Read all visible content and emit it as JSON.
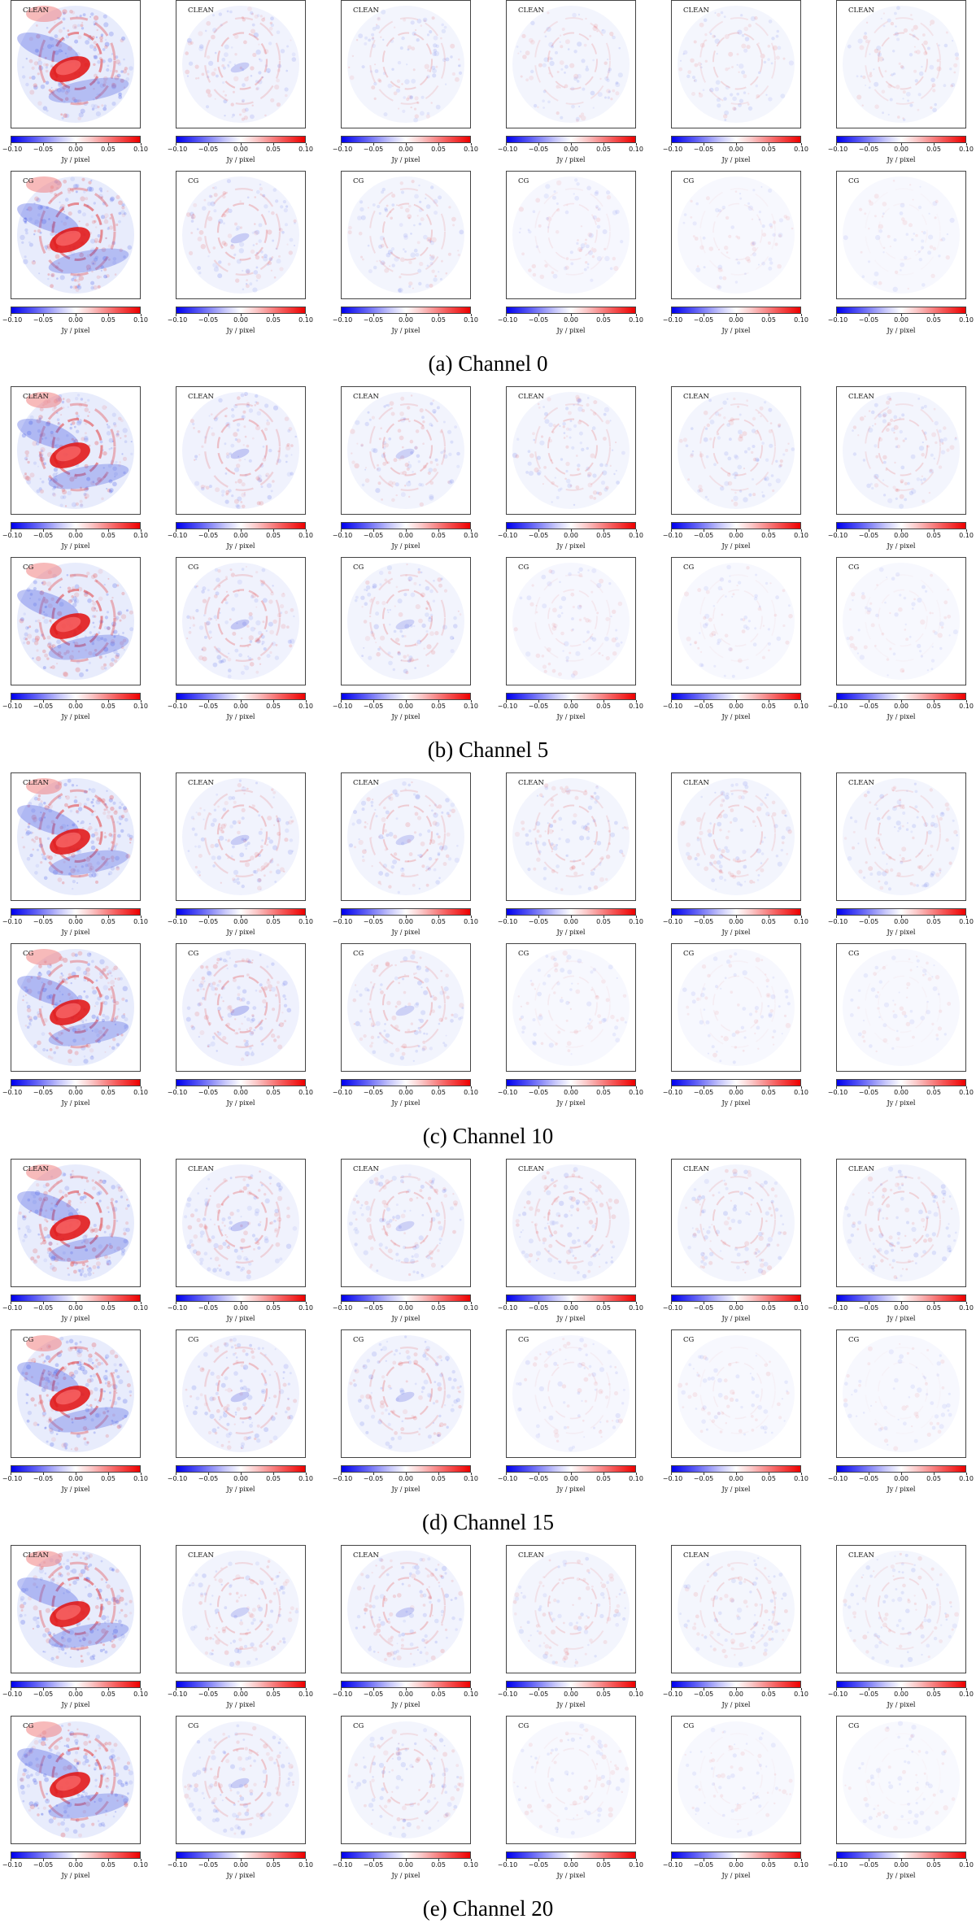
{
  "figure": {
    "colorbar": {
      "ticks": [
        "−0.10",
        "−0.05",
        "0.00",
        "0.05",
        "0.10"
      ],
      "tick_values": [
        -0.1,
        -0.05,
        0.0,
        0.05,
        0.1
      ],
      "unit": "Jy / pixel",
      "colormap": [
        "#0000ee",
        "#ffffff",
        "#ee0000"
      ]
    },
    "row_labels": [
      "CLEAN",
      "CG"
    ],
    "groups": [
      {
        "caption": "(a) Channel 0"
      },
      {
        "caption": "(b) Channel 5"
      },
      {
        "caption": "(c) Channel 10"
      },
      {
        "caption": "(d) Channel 15"
      },
      {
        "caption": "(e) Channel 20"
      }
    ]
  },
  "chart_data": {
    "type": "heatmap",
    "panels_per_row": 6,
    "rows_per_group": 2,
    "colorbar_range": [
      -0.1,
      0.1
    ],
    "colorbar_unit": "Jy / pixel",
    "groups": [
      {
        "caption": "(a) Channel 0",
        "rows": [
          {
            "label": "CLEAN",
            "panel_intensity": [
              1.0,
              0.45,
              0.35,
              0.3,
              0.28,
              0.28
            ]
          },
          {
            "label": "CG",
            "panel_intensity": [
              1.0,
              0.45,
              0.35,
              0.15,
              0.1,
              0.06
            ]
          }
        ]
      },
      {
        "caption": "(b) Channel 5",
        "rows": [
          {
            "label": "CLEAN",
            "panel_intensity": [
              1.0,
              0.5,
              0.4,
              0.35,
              0.3,
              0.3
            ]
          },
          {
            "label": "CG",
            "panel_intensity": [
              1.0,
              0.5,
              0.4,
              0.15,
              0.1,
              0.08
            ]
          }
        ]
      },
      {
        "caption": "(c) Channel 10",
        "rows": [
          {
            "label": "CLEAN",
            "panel_intensity": [
              1.0,
              0.45,
              0.4,
              0.35,
              0.32,
              0.3
            ]
          },
          {
            "label": "CG",
            "panel_intensity": [
              1.0,
              0.55,
              0.4,
              0.12,
              0.1,
              0.06
            ]
          }
        ]
      },
      {
        "caption": "(d) Channel 15",
        "rows": [
          {
            "label": "CLEAN",
            "panel_intensity": [
              1.0,
              0.5,
              0.4,
              0.38,
              0.35,
              0.35
            ]
          },
          {
            "label": "CG",
            "panel_intensity": [
              1.0,
              0.5,
              0.45,
              0.15,
              0.1,
              0.06
            ]
          }
        ]
      },
      {
        "caption": "(e) Channel 20",
        "rows": [
          {
            "label": "CLEAN",
            "panel_intensity": [
              1.0,
              0.4,
              0.45,
              0.3,
              0.28,
              0.25
            ]
          },
          {
            "label": "CG",
            "panel_intensity": [
              1.0,
              0.45,
              0.35,
              0.12,
              0.08,
              0.05
            ]
          }
        ]
      }
    ]
  }
}
